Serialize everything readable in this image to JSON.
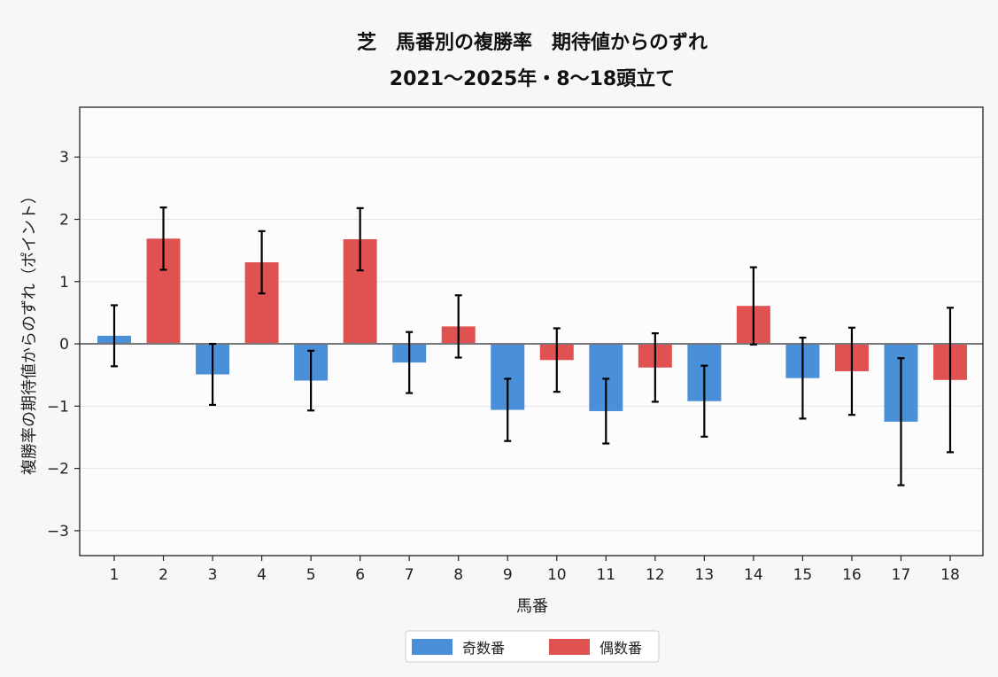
{
  "chart_data": {
    "type": "bar",
    "title": "芝　馬番別の複勝率　期待値からのずれ",
    "subtitle": "2021〜2025年・8〜18頭立て",
    "xlabel": "馬番",
    "ylabel": "複勝率の期待値からのずれ（ポイント）",
    "categories": [
      "1",
      "2",
      "3",
      "4",
      "5",
      "6",
      "7",
      "8",
      "9",
      "10",
      "11",
      "12",
      "13",
      "14",
      "15",
      "16",
      "17",
      "18"
    ],
    "values": [
      0.13,
      1.69,
      -0.49,
      1.31,
      -0.59,
      1.68,
      -0.3,
      0.28,
      -1.06,
      -0.26,
      -1.08,
      -0.38,
      -0.92,
      0.61,
      -0.55,
      -0.44,
      -1.25,
      -0.58
    ],
    "error": [
      0.49,
      0.5,
      0.49,
      0.5,
      0.48,
      0.5,
      0.49,
      0.5,
      0.5,
      0.51,
      0.52,
      0.55,
      0.57,
      0.62,
      0.65,
      0.7,
      1.02,
      1.16
    ],
    "groups": [
      "odd",
      "even",
      "odd",
      "even",
      "odd",
      "even",
      "odd",
      "even",
      "odd",
      "even",
      "odd",
      "even",
      "odd",
      "even",
      "odd",
      "even",
      "odd",
      "even"
    ],
    "ylim": [
      -3.4,
      3.8
    ],
    "yticks": [
      -3,
      -2,
      -1,
      0,
      1,
      2,
      3
    ],
    "ytick_labels": [
      "−3",
      "−2",
      "−1",
      "0",
      "1",
      "2",
      "3"
    ],
    "grid": "horizontal",
    "legend_placement": "bottom-center",
    "legend": [
      {
        "key": "odd",
        "label": "奇数番",
        "color": "#4a90d9"
      },
      {
        "key": "even",
        "label": "偶数番",
        "color": "#e05252"
      }
    ],
    "colors": {
      "odd": "#4a90d9",
      "even": "#e05252",
      "zero_line": "#777777",
      "error_bar": "#000000"
    }
  }
}
